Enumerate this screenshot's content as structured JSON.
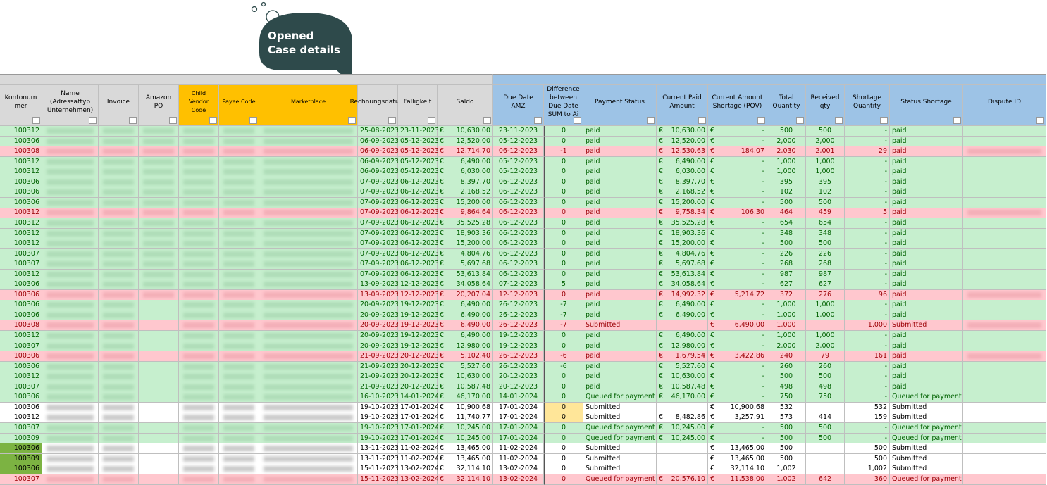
{
  "callout": {
    "line1": "Opened",
    "line2": "Case details"
  },
  "table": {
    "currency": "€",
    "columns": [
      {
        "title": "Kontonummer",
        "fill": "#d9d9d9"
      },
      {
        "title": "Name (Adressattyp Unternehmen)",
        "fill": "#d9d9d9"
      },
      {
        "title": "Invoice",
        "fill": "#d9d9d9"
      },
      {
        "title": "Amazon PO",
        "fill": "#d9d9d9"
      },
      {
        "title": "Child Vendor Code",
        "fill": "#ffc000"
      },
      {
        "title": "Payee Code",
        "fill": "#ffc000"
      },
      {
        "title": "Marketplace",
        "fill": "#ffc000"
      },
      {
        "title": "Rechnungsdatum",
        "fill": "#d9d9d9"
      },
      {
        "title": "Fälligkeit",
        "fill": "#d9d9d9"
      },
      {
        "title": "Saldo",
        "fill": "#d9d9d9"
      },
      {
        "title": "Due Date AMZ",
        "fill": "#9dc3e6"
      },
      {
        "title": "Difference between Due Date SUM to Ai",
        "fill": "#9dc3e6"
      },
      {
        "title": "Payment Status",
        "fill": "#9dc3e6"
      },
      {
        "title": "Current Paid Amount",
        "fill": "#9dc3e6"
      },
      {
        "title": "Current Amount Shortage (PQV)",
        "fill": "#9dc3e6"
      },
      {
        "title": "Total Quantity",
        "fill": "#9dc3e6"
      },
      {
        "title": "Received qty",
        "fill": "#9dc3e6"
      },
      {
        "title": "Shortage Quantity",
        "fill": "#9dc3e6"
      },
      {
        "title": "Status Shortage",
        "fill": "#9dc3e6"
      },
      {
        "title": "Dispute ID",
        "fill": "#9dc3e6"
      }
    ],
    "rows": [
      {
        "fill": "green",
        "cells": [
          "100312",
          "25-08-2023",
          "23-11-2023",
          "10,630.00",
          "23-11-2023",
          "0",
          "paid",
          "10,630.00",
          "-",
          "500",
          "500",
          "-",
          "paid"
        ]
      },
      {
        "fill": "green",
        "cells": [
          "100306",
          "06-09-2023",
          "05-12-2023",
          "12,520.00",
          "05-12-2023",
          "0",
          "paid",
          "12,520.00",
          "-",
          "2,000",
          "2,000",
          "-",
          "paid"
        ]
      },
      {
        "fill": "red",
        "cells": [
          "100308",
          "06-09-2023",
          "05-12-2023",
          "12,714.70",
          "06-12-2023",
          "-1",
          "paid",
          "12,530.63",
          "184.07",
          "2,030",
          "2,001",
          "29",
          "paid"
        ]
      },
      {
        "fill": "green",
        "cells": [
          "100312",
          "06-09-2023",
          "05-12-2023",
          "6,490.00",
          "05-12-2023",
          "0",
          "paid",
          "6,490.00",
          "-",
          "1,000",
          "1,000",
          "-",
          "paid"
        ]
      },
      {
        "fill": "green",
        "cells": [
          "100312",
          "06-09-2023",
          "05-12-2023",
          "6,030.00",
          "05-12-2023",
          "0",
          "paid",
          "6,030.00",
          "-",
          "1,000",
          "1,000",
          "-",
          "paid"
        ]
      },
      {
        "fill": "green",
        "cells": [
          "100306",
          "07-09-2023",
          "06-12-2023",
          "8,397.70",
          "06-12-2023",
          "0",
          "paid",
          "8,397.70",
          "-",
          "395",
          "395",
          "-",
          "paid"
        ]
      },
      {
        "fill": "green",
        "cells": [
          "100306",
          "07-09-2023",
          "06-12-2023",
          "2,168.52",
          "06-12-2023",
          "0",
          "paid",
          "2,168.52",
          "-",
          "102",
          "102",
          "-",
          "paid"
        ]
      },
      {
        "fill": "green",
        "cells": [
          "100306",
          "07-09-2023",
          "06-12-2023",
          "15,200.00",
          "06-12-2023",
          "0",
          "paid",
          "15,200.00",
          "-",
          "500",
          "500",
          "-",
          "paid"
        ]
      },
      {
        "fill": "red",
        "cells": [
          "100312",
          "07-09-2023",
          "06-12-2023",
          "9,864.64",
          "06-12-2023",
          "0",
          "paid",
          "9,758.34",
          "106.30",
          "464",
          "459",
          "5",
          "paid"
        ]
      },
      {
        "fill": "green",
        "cells": [
          "100312",
          "07-09-2023",
          "06-12-2023",
          "35,525.28",
          "06-12-2023",
          "0",
          "paid",
          "35,525.28",
          "-",
          "654",
          "654",
          "-",
          "paid"
        ]
      },
      {
        "fill": "green",
        "cells": [
          "100312",
          "07-09-2023",
          "06-12-2023",
          "18,903.36",
          "06-12-2023",
          "0",
          "paid",
          "18,903.36",
          "-",
          "348",
          "348",
          "-",
          "paid"
        ]
      },
      {
        "fill": "green",
        "cells": [
          "100312",
          "07-09-2023",
          "06-12-2023",
          "15,200.00",
          "06-12-2023",
          "0",
          "paid",
          "15,200.00",
          "-",
          "500",
          "500",
          "-",
          "paid"
        ]
      },
      {
        "fill": "green",
        "cells": [
          "100307",
          "07-09-2023",
          "06-12-2023",
          "4,804.76",
          "06-12-2023",
          "0",
          "paid",
          "4,804.76",
          "-",
          "226",
          "226",
          "-",
          "paid"
        ]
      },
      {
        "fill": "green",
        "cells": [
          "100307",
          "07-09-2023",
          "06-12-2023",
          "5,697.68",
          "06-12-2023",
          "0",
          "paid",
          "5,697.68",
          "-",
          "268",
          "268",
          "-",
          "paid"
        ]
      },
      {
        "fill": "green",
        "cells": [
          "100312",
          "07-09-2023",
          "06-12-2023",
          "53,613.84",
          "06-12-2023",
          "0",
          "paid",
          "53,613.84",
          "-",
          "987",
          "987",
          "-",
          "paid"
        ]
      },
      {
        "fill": "green",
        "cells": [
          "100306",
          "13-09-2023",
          "12-12-2023",
          "34,058.64",
          "07-12-2023",
          "5",
          "paid",
          "34,058.64",
          "-",
          "627",
          "627",
          "-",
          "paid"
        ]
      },
      {
        "fill": "red",
        "cells": [
          "100306",
          "13-09-2023",
          "12-12-2023",
          "20,207.04",
          "12-12-2023",
          "0",
          "paid",
          "14,992.32",
          "5,214.72",
          "372",
          "276",
          "96",
          "paid"
        ]
      },
      {
        "fill": "green",
        "cells": [
          "100306",
          "20-09-2023",
          "19-12-2023",
          "6,490.00",
          "26-12-2023",
          "-7",
          "paid",
          "6,490.00",
          "-",
          "1,000",
          "1,000",
          "-",
          "paid"
        ]
      },
      {
        "fill": "green",
        "cells": [
          "100306",
          "20-09-2023",
          "19-12-2023",
          "6,490.00",
          "26-12-2023",
          "-7",
          "paid",
          "6,490.00",
          "-",
          "1,000",
          "1,000",
          "-",
          "paid"
        ]
      },
      {
        "fill": "red",
        "cells": [
          "100308",
          "20-09-2023",
          "19-12-2023",
          "6,490.00",
          "26-12-2023",
          "-7",
          "Submitted",
          null,
          "6,490.00",
          "1,000",
          null,
          "1,000",
          "Submitted"
        ]
      },
      {
        "fill": "green",
        "cells": [
          "100312",
          "20-09-2023",
          "19-12-2023",
          "6,490.00",
          "19-12-2023",
          "0",
          "paid",
          "6,490.00",
          "-",
          "1,000",
          "1,000",
          "-",
          "paid"
        ]
      },
      {
        "fill": "green",
        "cells": [
          "100307",
          "20-09-2023",
          "19-12-2023",
          "12,980.00",
          "19-12-2023",
          "0",
          "paid",
          "12,980.00",
          "-",
          "2,000",
          "2,000",
          "-",
          "paid"
        ]
      },
      {
        "fill": "red",
        "cells": [
          "100306",
          "21-09-2023",
          "20-12-2023",
          "5,102.40",
          "26-12-2023",
          "-6",
          "paid",
          "1,679.54",
          "3,422.86",
          "240",
          "79",
          "161",
          "paid"
        ]
      },
      {
        "fill": "green",
        "cells": [
          "100306",
          "21-09-2023",
          "20-12-2023",
          "5,527.60",
          "26-12-2023",
          "-6",
          "paid",
          "5,527.60",
          "-",
          "260",
          "260",
          "-",
          "paid"
        ]
      },
      {
        "fill": "green",
        "cells": [
          "100312",
          "21-09-2023",
          "20-12-2023",
          "10,630.00",
          "20-12-2023",
          "0",
          "paid",
          "10,630.00",
          "-",
          "500",
          "500",
          "-",
          "paid"
        ]
      },
      {
        "fill": "green",
        "cells": [
          "100307",
          "21-09-2023",
          "20-12-2023",
          "10,587.48",
          "20-12-2023",
          "0",
          "paid",
          "10,587.48",
          "-",
          "498",
          "498",
          "-",
          "paid"
        ]
      },
      {
        "fill": "green",
        "cells": [
          "100306",
          "16-10-2023",
          "14-01-2024",
          "46,170.00",
          "14-01-2024",
          "0",
          "Queued for payment",
          "46,170.00",
          "-",
          "750",
          "750",
          "-",
          "Queued for payment"
        ]
      },
      {
        "fill": "white",
        "diff_fill": "#ffe699",
        "cells": [
          "100306",
          "19-10-2023",
          "17-01-2024",
          "10,900.68",
          "17-01-2024",
          "0",
          "Submitted",
          null,
          "10,900.68",
          "532",
          null,
          "532",
          "Submitted"
        ]
      },
      {
        "fill": "white",
        "diff_fill": "#ffe699",
        "cells": [
          "100312",
          "19-10-2023",
          "17-01-2024",
          "11,740.77",
          "17-01-2024",
          "0",
          "Submitted",
          "8,482.86",
          "3,257.91",
          "573",
          "414",
          "159",
          "Submitted"
        ]
      },
      {
        "fill": "green",
        "cells": [
          "100307",
          "19-10-2023",
          "17-01-2024",
          "10,245.00",
          "17-01-2024",
          "0",
          "Queued for payment",
          "10,245.00",
          "-",
          "500",
          "500",
          "-",
          "Queued for payment"
        ]
      },
      {
        "fill": "green",
        "cells": [
          "100309",
          "19-10-2023",
          "17-01-2024",
          "10,245.00",
          "17-01-2024",
          "0",
          "Queued for payment",
          "10,245.00",
          "-",
          "500",
          "500",
          "-",
          "Queued for payment"
        ]
      },
      {
        "fill": "white",
        "id_fill": "#7cb342",
        "cells": [
          "100306",
          "13-11-2023",
          "11-02-2024",
          "13,465.00",
          "11-02-2024",
          "0",
          "Submitted",
          null,
          "13,465.00",
          "500",
          null,
          "500",
          "Submitted"
        ]
      },
      {
        "fill": "white",
        "id_fill": "#7cb342",
        "cells": [
          "100309",
          "13-11-2023",
          "11-02-2024",
          "13,465.00",
          "11-02-2024",
          "0",
          "Submitted",
          null,
          "13,465.00",
          "500",
          null,
          "500",
          "Submitted"
        ]
      },
      {
        "fill": "white",
        "id_fill": "#7cb342",
        "cells": [
          "100306",
          "15-11-2023",
          "13-02-2024",
          "32,114.10",
          "13-02-2024",
          "0",
          "Submitted",
          null,
          "32,114.10",
          "1,002",
          null,
          "1,002",
          "Submitted"
        ]
      },
      {
        "fill": "red",
        "cells": [
          "100307",
          "15-11-2023",
          "13-02-2024",
          "32,114.10",
          "13-02-2024",
          "0",
          "Queued for payment",
          "20,576.10",
          "11,538.00",
          "1,002",
          "642",
          "360",
          "Queued for payment"
        ]
      }
    ]
  }
}
